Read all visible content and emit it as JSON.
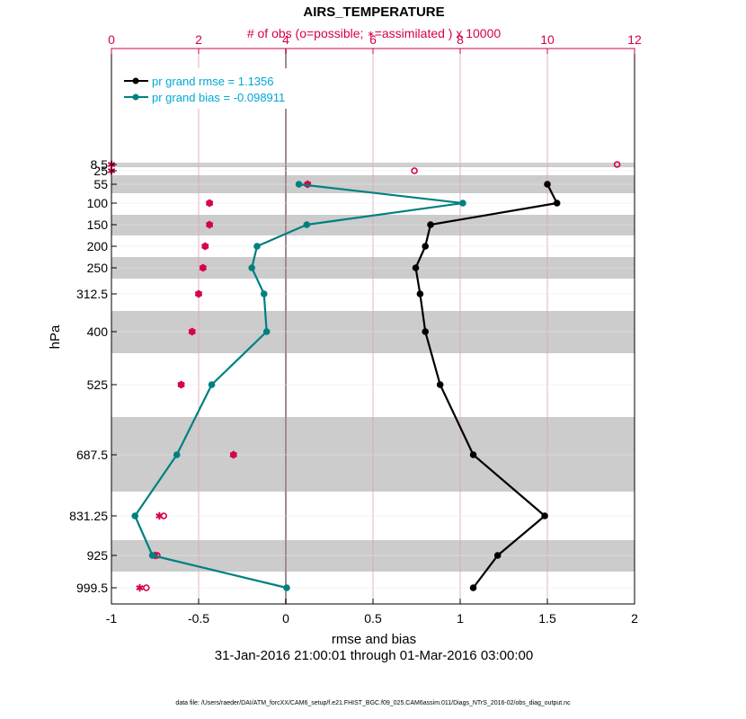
{
  "chart_data": {
    "type": "line",
    "title": "AIRS_TEMPERATURE",
    "top_axis_label": "# of obs (o=possible; ∗=assimilated ) x 10000",
    "top_axis_label_parts": [
      "# of obs (o=possible; ",
      "∗",
      "=assimilated ) x 10000"
    ],
    "xlabel": "rmse and bias",
    "ylabel": "hPa",
    "date_range": "31-Jan-2016 21:00:01 through 01-Mar-2016 03:00:00",
    "footer": "data file: /Users/raeder/DAI/ATM_forcXX/CAM6_setup/f.e21.FHIST_BGC.f09_025.CAM6assim.011/Diags_NTrS_2016-02/obs_diag_output.nc",
    "xlim": [
      -1,
      2
    ],
    "xticks": [
      -1,
      -0.5,
      0,
      0.5,
      1,
      1.5,
      2
    ],
    "xtick_labels": [
      "-1",
      "-0.5",
      "0",
      "0.5",
      "1",
      "1.5",
      "2"
    ],
    "top_xlim": [
      0,
      12
    ],
    "top_xticks": [
      0,
      2,
      4,
      6,
      8,
      10,
      12
    ],
    "top_xtick_labels": [
      "0",
      "2",
      "4",
      "6",
      "8",
      "10",
      "12"
    ],
    "levels": [
      8.5,
      25,
      55,
      100,
      150,
      200,
      250,
      312.5,
      400,
      525,
      687.5,
      831.25,
      925,
      999.5
    ],
    "level_labels": [
      "8.5",
      "25",
      "55",
      "100",
      "150",
      "200",
      "250",
      "312.5",
      "400",
      "525",
      "687.5",
      "831.25",
      "925",
      "999.5"
    ],
    "legend": [
      {
        "name": "pr grand rmse = 1.1356"
      },
      {
        "name": "pr grand bias = -0.098911"
      }
    ],
    "colors": {
      "rmse": "#000000",
      "bias": "#008080",
      "obs": "#d6004f",
      "legend_text": "#00a8d6",
      "band": "#cccccc",
      "top_axis": "#d6004f"
    },
    "series": [
      {
        "name": "rmse",
        "levels": [
          55,
          100,
          150,
          200,
          250,
          312.5,
          400,
          525,
          687.5,
          831.25,
          925,
          999.5
        ],
        "values": [
          1.5,
          1.555,
          0.83,
          0.8,
          0.745,
          0.77,
          0.8,
          0.885,
          1.075,
          1.485,
          1.215,
          1.075
        ]
      },
      {
        "name": "bias",
        "levels": [
          55,
          100,
          150,
          200,
          250,
          312.5,
          400,
          525,
          687.5,
          831.25,
          925,
          999.5
        ],
        "values": [
          0.075,
          1.015,
          0.12,
          -0.165,
          -0.195,
          -0.125,
          -0.11,
          -0.425,
          -0.625,
          -0.865,
          -0.765,
          0.005
        ]
      },
      {
        "name": "obs_possible",
        "levels": [
          8.5,
          25,
          55,
          100,
          150,
          200,
          250,
          312.5,
          400,
          525,
          687.5,
          831.25,
          925,
          999.5
        ],
        "values": [
          11.6,
          6.95,
          4.5,
          2.25,
          2.25,
          2.15,
          2.1,
          2.0,
          1.85,
          1.6,
          2.8,
          1.2,
          1.05,
          0.8
        ]
      },
      {
        "name": "obs_assimilated",
        "levels": [
          8.5,
          25,
          55,
          100,
          150,
          200,
          250,
          312.5,
          400,
          525,
          687.5,
          831.25,
          925,
          999.5
        ],
        "values": [
          0.0,
          0.0,
          4.5,
          2.25,
          2.25,
          2.15,
          2.1,
          2.0,
          1.85,
          1.6,
          2.8,
          1.1,
          1.0,
          0.65
        ]
      }
    ]
  }
}
